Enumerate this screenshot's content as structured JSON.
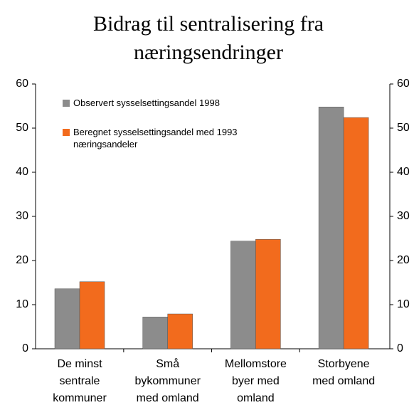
{
  "chart_data": {
    "type": "bar",
    "title": "Bidrag til sentralisering fra næringsendringer",
    "categories": [
      "De minst sentrale kommuner",
      "Små bykommuner med omland",
      "Mellomstore byer med omland",
      "Storbyene med omland"
    ],
    "series": [
      {
        "name": "Observert sysselsettingsandel 1998",
        "color": "#8c8c8c",
        "values": [
          13.6,
          7.2,
          24.4,
          54.8
        ]
      },
      {
        "name": "Beregnet sysselsettingsandel med 1993 næringsandeler",
        "color": "#f26b1d",
        "values": [
          15.2,
          7.9,
          24.8,
          52.4
        ]
      }
    ],
    "ylim": [
      0,
      60
    ],
    "yticks": [
      0,
      10,
      20,
      30,
      40,
      50,
      60
    ],
    "y2lim": [
      0,
      60
    ],
    "y2ticks": [
      0,
      10,
      20,
      30,
      40,
      50,
      60
    ],
    "legend": "upper left",
    "grid": false
  }
}
